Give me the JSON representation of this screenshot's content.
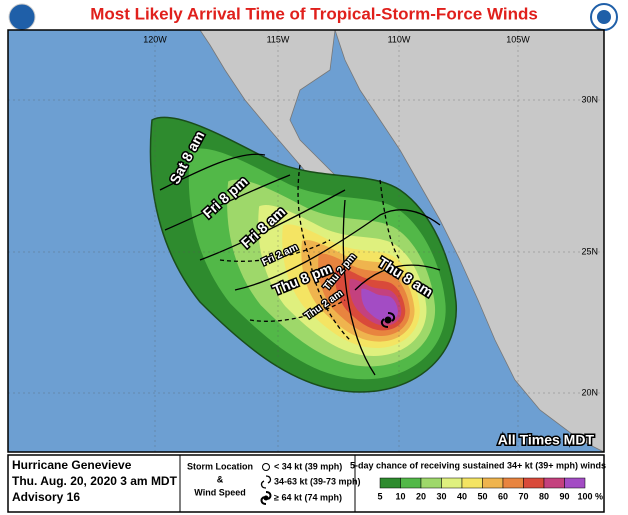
{
  "title": "Most Likely Arrival Time of Tropical-Storm-Force Winds",
  "map": {
    "longitude_labels": [
      "120W",
      "115W",
      "110W",
      "105W"
    ],
    "latitude_labels": [
      "30N",
      "25N",
      "20N"
    ],
    "contour_labels": [
      "Sat 8 am",
      "Fri 8 pm",
      "Fri 8 am",
      "Fri 2 am",
      "Thu 8 pm",
      "Thu 2 pm",
      "Thu 8 am",
      "Thu 2 am"
    ],
    "time_note": "All Times MDT"
  },
  "footer": {
    "storm_name": "Hurricane Genevieve",
    "issued": "Thu. Aug. 20, 2020  3 am MDT",
    "advisory": "Advisory 16",
    "legend_title": [
      "Storm Location",
      "&",
      "Wind Speed"
    ],
    "legend_items": [
      "< 34 kt (39 mph)",
      "34-63 kt (39-73 mph)",
      "≥ 64 kt (74 mph)"
    ],
    "scale_title": "5-day chance of receiving sustained 34+ kt (39+ mph) winds",
    "scale_labels": [
      "5",
      "10",
      "20",
      "30",
      "40",
      "50",
      "60",
      "70",
      "80",
      "90",
      "100"
    ],
    "scale_unit": "%"
  }
}
